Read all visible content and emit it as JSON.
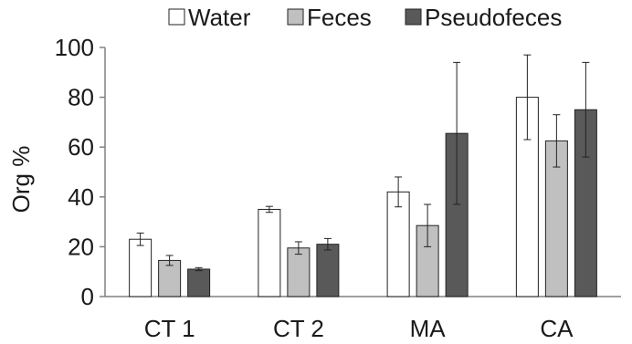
{
  "chart_data": {
    "type": "bar",
    "title": "",
    "xlabel": "",
    "ylabel": "Org %",
    "ylim": [
      0,
      100
    ],
    "yticks": [
      0,
      20,
      40,
      60,
      80,
      100
    ],
    "grid": false,
    "legend_position": "top",
    "categories": [
      "CT 1",
      "CT 2",
      "MA",
      "CA"
    ],
    "series": [
      {
        "name": "Water",
        "color": "#ffffff",
        "values": [
          23,
          35,
          42,
          80
        ],
        "errors": [
          2.5,
          1.2,
          6,
          17
        ]
      },
      {
        "name": "Feces",
        "color": "#c0c0c0",
        "values": [
          14.5,
          19.5,
          28.5,
          62.5
        ],
        "errors": [
          2,
          2.5,
          8.5,
          10.5
        ]
      },
      {
        "name": "Pseudofeces",
        "color": "#595959",
        "values": [
          11,
          21,
          65.5,
          75
        ],
        "errors": [
          0.6,
          2.3,
          28.5,
          19
        ]
      }
    ]
  }
}
